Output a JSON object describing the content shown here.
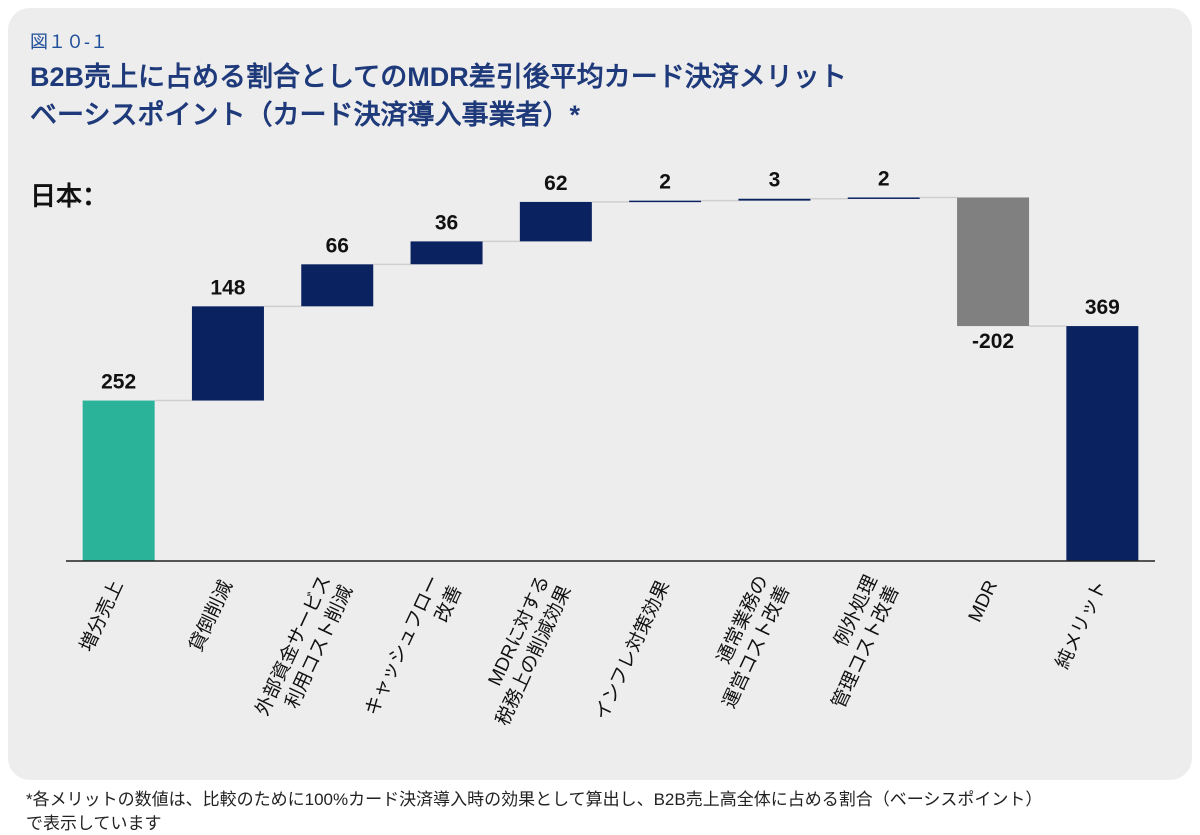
{
  "figure_label": "図１０-１",
  "title_lines": [
    "B2B売上に占める割合としてのMDR差引後平均カード決済メリット",
    "ベーシスポイント（カード決済導入事業者）*"
  ],
  "footnote_lines": [
    "*各メリットの数値は、比較のために100%カード決済導入時の効果として算出し、B2B売上高全体に占める割合（ベーシスポイント）",
    "で表示しています"
  ],
  "chart_data": {
    "type": "waterfall",
    "subtitle": "日本：",
    "categories": [
      "増分売上",
      "貸倒削減",
      "外部資金サービス\n利用コスト削減",
      "キャッシュフロー\n改善",
      "MDRに対する\n税務上の削減効果",
      "インフレ対策効果",
      "通常業務の\n運営コスト改善",
      "例外処理\n管理コスト改善",
      "MDR",
      "純メリット"
    ],
    "values": [
      252,
      148,
      66,
      36,
      62,
      2,
      3,
      2,
      -202,
      369
    ],
    "colors": [
      "#2bb39a",
      "#0b2260",
      "#0b2260",
      "#0b2260",
      "#0b2260",
      "#0b2260",
      "#0b2260",
      "#0b2260",
      "#808080",
      "#0b2260"
    ],
    "ylim": [
      0,
      600
    ]
  }
}
